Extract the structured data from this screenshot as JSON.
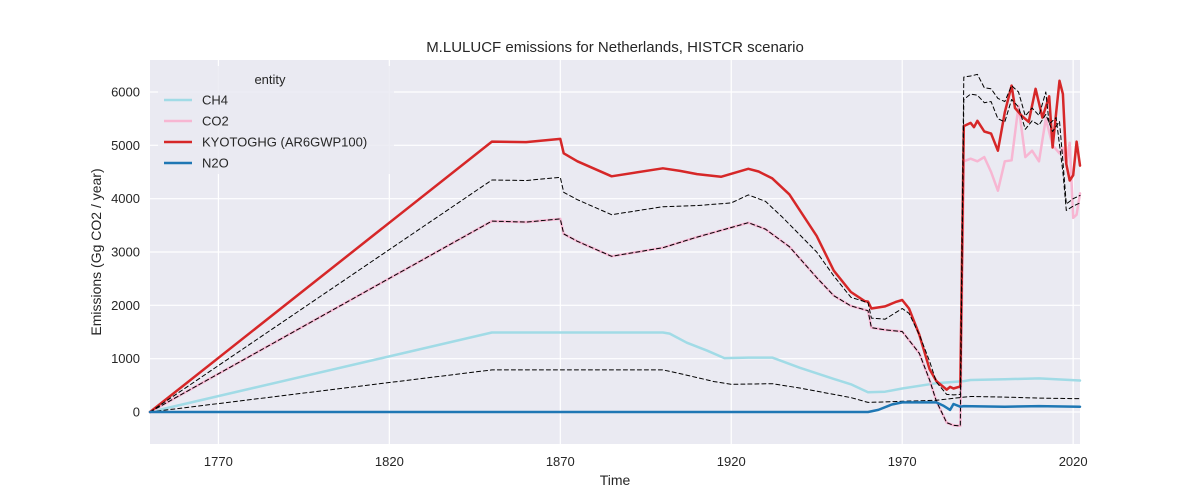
{
  "chart_data": {
    "type": "line",
    "title": "M.LULUCF emissions for Netherlands, HISTCR scenario",
    "xlabel": "Time",
    "ylabel": "Emissions (Gg CO2 / year)",
    "xlim": [
      1750,
      2022
    ],
    "ylim": [
      -600,
      6600
    ],
    "xticks": [
      1770,
      1820,
      1870,
      1920,
      1970,
      2020
    ],
    "yticks": [
      0,
      1000,
      2000,
      3000,
      4000,
      5000,
      6000
    ],
    "grid": true,
    "legend": {
      "title": "entity",
      "placement": "top-left"
    },
    "background_color": "#eaeaf2",
    "series": [
      {
        "name": "CH4",
        "color": "#a1dbe6",
        "width": 2.5,
        "points": [
          [
            1750,
            0
          ],
          [
            1850,
            1490
          ],
          [
            1900,
            1490
          ],
          [
            1902,
            1470
          ],
          [
            1907,
            1300
          ],
          [
            1913,
            1150
          ],
          [
            1918,
            1010
          ],
          [
            1925,
            1020
          ],
          [
            1932,
            1020
          ],
          [
            1940,
            830
          ],
          [
            1950,
            620
          ],
          [
            1955,
            520
          ],
          [
            1960,
            370
          ],
          [
            1965,
            380
          ],
          [
            1970,
            440
          ],
          [
            1980,
            540
          ],
          [
            1988,
            580
          ],
          [
            1990,
            600
          ],
          [
            2000,
            615
          ],
          [
            2010,
            630
          ],
          [
            2022,
            590
          ]
        ]
      },
      {
        "name": "CO2",
        "color": "#f7b6d2",
        "width": 2.5,
        "points": [
          [
            1750,
            0
          ],
          [
            1850,
            3580
          ],
          [
            1860,
            3560
          ],
          [
            1870,
            3620
          ],
          [
            1871,
            3340
          ],
          [
            1875,
            3200
          ],
          [
            1885,
            2920
          ],
          [
            1900,
            3080
          ],
          [
            1910,
            3280
          ],
          [
            1920,
            3460
          ],
          [
            1925,
            3550
          ],
          [
            1930,
            3430
          ],
          [
            1937,
            3100
          ],
          [
            1945,
            2520
          ],
          [
            1950,
            2180
          ],
          [
            1955,
            1990
          ],
          [
            1960,
            1900
          ],
          [
            1961,
            1580
          ],
          [
            1965,
            1540
          ],
          [
            1970,
            1510
          ],
          [
            1975,
            1100
          ],
          [
            1978,
            600
          ],
          [
            1980,
            200
          ],
          [
            1983,
            -200
          ],
          [
            1985,
            -250
          ],
          [
            1987,
            -260
          ],
          [
            1988,
            4700
          ],
          [
            1990,
            4750
          ],
          [
            1992,
            4700
          ],
          [
            1994,
            4780
          ],
          [
            1996,
            4500
          ],
          [
            1998,
            4150
          ],
          [
            2000,
            4700
          ],
          [
            2002,
            4720
          ],
          [
            2004,
            5740
          ],
          [
            2006,
            4780
          ],
          [
            2008,
            4900
          ],
          [
            2010,
            4700
          ],
          [
            2012,
            5500
          ],
          [
            2014,
            5000
          ],
          [
            2016,
            4850
          ],
          [
            2017,
            4950
          ],
          [
            2018,
            4650
          ],
          [
            2019,
            5050
          ],
          [
            2020,
            3640
          ],
          [
            2021,
            3700
          ],
          [
            2022,
            4100
          ]
        ]
      },
      {
        "name": "KYOTOGHG (AR6GWP100)",
        "color": "#d62728",
        "width": 2.5,
        "points": [
          [
            1750,
            0
          ],
          [
            1850,
            5070
          ],
          [
            1860,
            5060
          ],
          [
            1870,
            5120
          ],
          [
            1871,
            4850
          ],
          [
            1875,
            4700
          ],
          [
            1885,
            4420
          ],
          [
            1900,
            4570
          ],
          [
            1905,
            4520
          ],
          [
            1910,
            4460
          ],
          [
            1917,
            4410
          ],
          [
            1925,
            4560
          ],
          [
            1928,
            4510
          ],
          [
            1932,
            4380
          ],
          [
            1937,
            4080
          ],
          [
            1945,
            3300
          ],
          [
            1950,
            2650
          ],
          [
            1955,
            2250
          ],
          [
            1959,
            2080
          ],
          [
            1960,
            2070
          ],
          [
            1961,
            1940
          ],
          [
            1965,
            1980
          ],
          [
            1968,
            2060
          ],
          [
            1970,
            2100
          ],
          [
            1972,
            1940
          ],
          [
            1975,
            1450
          ],
          [
            1978,
            800
          ],
          [
            1980,
            580
          ],
          [
            1983,
            420
          ],
          [
            1984,
            470
          ],
          [
            1985,
            440
          ],
          [
            1987,
            480
          ],
          [
            1988,
            5360
          ],
          [
            1990,
            5420
          ],
          [
            1991,
            5340
          ],
          [
            1992,
            5460
          ],
          [
            1994,
            5260
          ],
          [
            1996,
            5220
          ],
          [
            1998,
            4900
          ],
          [
            2000,
            5620
          ],
          [
            2002,
            6120
          ],
          [
            2003,
            5700
          ],
          [
            2005,
            5550
          ],
          [
            2007,
            5440
          ],
          [
            2009,
            6060
          ],
          [
            2011,
            5520
          ],
          [
            2013,
            5920
          ],
          [
            2014,
            4960
          ],
          [
            2015,
            5600
          ],
          [
            2016,
            6210
          ],
          [
            2017,
            5960
          ],
          [
            2018,
            4650
          ],
          [
            2019,
            4340
          ],
          [
            2020,
            4440
          ],
          [
            2021,
            5070
          ],
          [
            2022,
            4620
          ]
        ]
      },
      {
        "name": "N2O",
        "color": "#1f77b4",
        "width": 2.5,
        "points": [
          [
            1750,
            0
          ],
          [
            1960,
            0
          ],
          [
            1963,
            40
          ],
          [
            1967,
            140
          ],
          [
            1970,
            180
          ],
          [
            1980,
            180
          ],
          [
            1982,
            120
          ],
          [
            1984,
            40
          ],
          [
            1985,
            150
          ],
          [
            1987,
            100
          ],
          [
            1988,
            110
          ],
          [
            2000,
            100
          ],
          [
            2010,
            110
          ],
          [
            2022,
            100
          ]
        ]
      }
    ],
    "envelopes": [
      {
        "color": "#000000",
        "dash": "4,3",
        "points": [
          [
            1750,
            0
          ],
          [
            1850,
            4350
          ],
          [
            1860,
            4340
          ],
          [
            1870,
            4400
          ],
          [
            1871,
            4120
          ],
          [
            1875,
            3980
          ],
          [
            1885,
            3700
          ],
          [
            1900,
            3850
          ],
          [
            1910,
            3870
          ],
          [
            1920,
            3920
          ],
          [
            1925,
            4070
          ],
          [
            1930,
            3950
          ],
          [
            1935,
            3650
          ],
          [
            1945,
            3000
          ],
          [
            1950,
            2550
          ],
          [
            1955,
            2150
          ],
          [
            1960,
            2050
          ],
          [
            1961,
            1760
          ],
          [
            1965,
            1740
          ],
          [
            1970,
            1940
          ],
          [
            1972,
            1850
          ],
          [
            1975,
            1450
          ],
          [
            1978,
            950
          ],
          [
            1980,
            560
          ],
          [
            1983,
            330
          ],
          [
            1985,
            320
          ],
          [
            1987,
            330
          ],
          [
            1988,
            6280
          ],
          [
            1990,
            6300
          ],
          [
            1992,
            6330
          ],
          [
            1994,
            6080
          ],
          [
            1996,
            6060
          ],
          [
            1998,
            5880
          ],
          [
            2000,
            5820
          ],
          [
            2002,
            6120
          ],
          [
            2004,
            6000
          ],
          [
            2006,
            5550
          ],
          [
            2008,
            5700
          ],
          [
            2010,
            5560
          ],
          [
            2012,
            6000
          ],
          [
            2013,
            5400
          ],
          [
            2015,
            5520
          ],
          [
            2017,
            4500
          ],
          [
            2018,
            3780
          ],
          [
            2020,
            3860
          ],
          [
            2022,
            3920
          ]
        ]
      },
      {
        "color": "#000000",
        "dash": "4,3",
        "points": [
          [
            1750,
            0
          ],
          [
            1850,
            3580
          ],
          [
            1860,
            3560
          ],
          [
            1870,
            3620
          ],
          [
            1871,
            3340
          ],
          [
            1875,
            3200
          ],
          [
            1885,
            2920
          ],
          [
            1900,
            3080
          ],
          [
            1910,
            3280
          ],
          [
            1920,
            3460
          ],
          [
            1925,
            3550
          ],
          [
            1930,
            3430
          ],
          [
            1937,
            3100
          ],
          [
            1945,
            2520
          ],
          [
            1950,
            2180
          ],
          [
            1955,
            1990
          ],
          [
            1960,
            1900
          ],
          [
            1961,
            1580
          ],
          [
            1965,
            1540
          ],
          [
            1970,
            1510
          ],
          [
            1975,
            1100
          ],
          [
            1978,
            600
          ],
          [
            1980,
            200
          ],
          [
            1983,
            -200
          ],
          [
            1985,
            -250
          ],
          [
            1987,
            -260
          ],
          [
            1988,
            5860
          ],
          [
            1990,
            5960
          ],
          [
            1992,
            5940
          ],
          [
            1994,
            5800
          ],
          [
            1996,
            5820
          ],
          [
            1998,
            5500
          ],
          [
            2000,
            5440
          ],
          [
            2002,
            5860
          ],
          [
            2004,
            5720
          ],
          [
            2006,
            5300
          ],
          [
            2008,
            5460
          ],
          [
            2010,
            5380
          ],
          [
            2012,
            5580
          ],
          [
            2014,
            5260
          ],
          [
            2016,
            5450
          ],
          [
            2017,
            4700
          ],
          [
            2018,
            3900
          ],
          [
            2020,
            4000
          ],
          [
            2022,
            4060
          ]
        ]
      },
      {
        "color": "#000000",
        "dash": "4,3",
        "points": [
          [
            1750,
            0
          ],
          [
            1850,
            790
          ],
          [
            1900,
            790
          ],
          [
            1905,
            720
          ],
          [
            1915,
            570
          ],
          [
            1920,
            520
          ],
          [
            1932,
            530
          ],
          [
            1940,
            450
          ],
          [
            1950,
            330
          ],
          [
            1955,
            270
          ],
          [
            1960,
            180
          ],
          [
            1965,
            190
          ],
          [
            1970,
            200
          ],
          [
            1980,
            220
          ],
          [
            1988,
            280
          ],
          [
            1990,
            290
          ],
          [
            2000,
            280
          ],
          [
            2010,
            260
          ],
          [
            2022,
            250
          ]
        ]
      },
      {
        "color": "#000000",
        "dash": "4,3",
        "points": [
          [
            1750,
            0
          ],
          [
            1960,
            0
          ],
          [
            1963,
            40
          ],
          [
            1967,
            140
          ],
          [
            1970,
            180
          ],
          [
            1980,
            180
          ],
          [
            1982,
            120
          ],
          [
            1984,
            40
          ],
          [
            1985,
            150
          ],
          [
            1987,
            100
          ],
          [
            1988,
            110
          ],
          [
            2000,
            100
          ],
          [
            2010,
            110
          ],
          [
            2022,
            100
          ]
        ]
      }
    ]
  }
}
